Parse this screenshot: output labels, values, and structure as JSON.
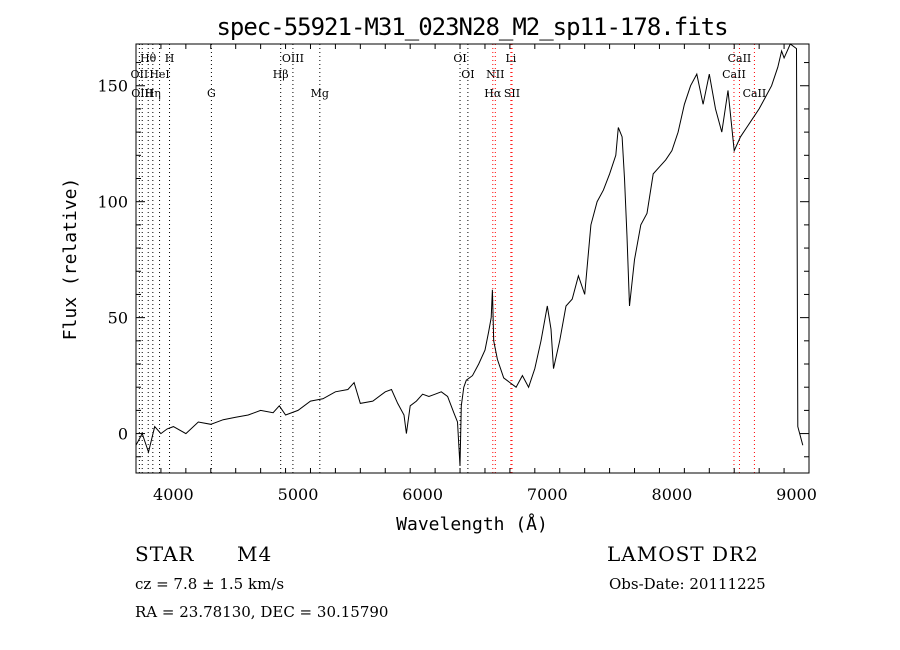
{
  "chart_data": {
    "type": "line",
    "title": "spec-55921-M31_023N28_M2_sp11-178.fits",
    "xlabel": "Wavelength (Å)",
    "ylabel": "Flux (relative)",
    "xlim": [
      3700,
      9100
    ],
    "ylim": [
      -17,
      168
    ],
    "x_ticks": [
      4000,
      5000,
      6000,
      7000,
      8000,
      9000
    ],
    "y_ticks": [
      0,
      50,
      100,
      150
    ],
    "grid": false,
    "series": [
      {
        "x": [
          3700,
          3750,
          3800,
          3850,
          3900,
          3950,
          4000,
          4100,
          4200,
          4300,
          4400,
          4500,
          4600,
          4700,
          4800,
          4850,
          4900,
          5000,
          5100,
          5200,
          5300,
          5400,
          5450,
          5500,
          5600,
          5700,
          5750,
          5800,
          5850,
          5870,
          5900,
          5950,
          6000,
          6050,
          6100,
          6150,
          6200,
          6250,
          6280,
          6300,
          6310,
          6330,
          6350,
          6400,
          6450,
          6500,
          6530,
          6550,
          6560,
          6570,
          6600,
          6650,
          6700,
          6750,
          6800,
          6850,
          6900,
          6950,
          7000,
          7030,
          7050,
          7100,
          7150,
          7200,
          7250,
          7300,
          7350,
          7400,
          7450,
          7500,
          7550,
          7570,
          7600,
          7620,
          7640,
          7660,
          7700,
          7750,
          7800,
          7850,
          7900,
          7950,
          8000,
          8050,
          8100,
          8150,
          8200,
          8250,
          8300,
          8350,
          8400,
          8450,
          8500,
          8550,
          8600,
          8650,
          8700,
          8750,
          8800,
          8850,
          8880,
          8900,
          8950,
          9000,
          9010,
          9050
        ],
        "y": [
          -5,
          0,
          -8,
          3,
          0,
          2,
          3,
          0,
          5,
          4,
          6,
          7,
          8,
          10,
          9,
          12,
          8,
          10,
          14,
          15,
          18,
          19,
          22,
          13,
          14,
          18,
          19,
          13,
          8,
          0,
          12,
          14,
          17,
          16,
          17,
          18,
          16,
          9,
          5,
          -14,
          12,
          20,
          23,
          25,
          30,
          36,
          44,
          50,
          62,
          40,
          32,
          24,
          22,
          20,
          25,
          20,
          28,
          40,
          55,
          45,
          28,
          40,
          55,
          58,
          68,
          60,
          90,
          100,
          105,
          112,
          120,
          132,
          128,
          110,
          85,
          55,
          75,
          90,
          95,
          112,
          115,
          118,
          122,
          130,
          142,
          150,
          155,
          142,
          155,
          140,
          130,
          148,
          122,
          128,
          132,
          136,
          140,
          145,
          150,
          158,
          165,
          162,
          168,
          166,
          3,
          -5
        ]
      }
    ],
    "lines": [
      {
        "name": "Hθ",
        "x": 3798,
        "row": 1,
        "color": "#000000"
      },
      {
        "name": "OII",
        "x": 3727,
        "row": 2,
        "color": "#000000"
      },
      {
        "name": "OIII",
        "x": 3750,
        "row": 3,
        "color": "#000000"
      },
      {
        "name": "H",
        "x": 3969,
        "row": 1,
        "color": "#000000"
      },
      {
        "name": "HeI",
        "x": 3889,
        "row": 2,
        "color": "#000000"
      },
      {
        "name": "Hη",
        "x": 3835,
        "row": 3,
        "color": "#000000"
      },
      {
        "name": "G",
        "x": 4305,
        "row": 3,
        "color": "#000000"
      },
      {
        "name": "OIII",
        "x": 4959,
        "row": 1,
        "color": "#000000"
      },
      {
        "name": "Hβ",
        "x": 4861,
        "row": 2,
        "color": "#000000"
      },
      {
        "name": "Mg",
        "x": 5175,
        "row": 3,
        "color": "#000000"
      },
      {
        "name": "OI",
        "x": 6300,
        "row": 1,
        "color": "#000000"
      },
      {
        "name": "OI",
        "x": 6363,
        "row": 2,
        "color": "#000000"
      },
      {
        "name": "Li",
        "x": 6708,
        "row": 1,
        "color": "#ff0000"
      },
      {
        "name": "NII",
        "x": 6583,
        "row": 2,
        "color": "#ff0000"
      },
      {
        "name": "Hα",
        "x": 6563,
        "row": 3,
        "color": "#ff0000"
      },
      {
        "name": "SII",
        "x": 6717,
        "row": 3,
        "color": "#ff0000"
      },
      {
        "name": "CaII",
        "x": 8542,
        "row": 1,
        "color": "#ff0000"
      },
      {
        "name": "CaII",
        "x": 8498,
        "row": 2,
        "color": "#ff0000"
      },
      {
        "name": "CaII",
        "x": 8662,
        "row": 3,
        "color": "#ff0000"
      }
    ]
  },
  "info": {
    "object_class": "STAR",
    "subclass": "M4",
    "survey": "LAMOST DR2",
    "cz": "cz = 7.8 ± 1.5 km/s",
    "obs_date": "Obs-Date: 20111225",
    "coords": "RA =  23.78130, DEC =  30.15790"
  }
}
